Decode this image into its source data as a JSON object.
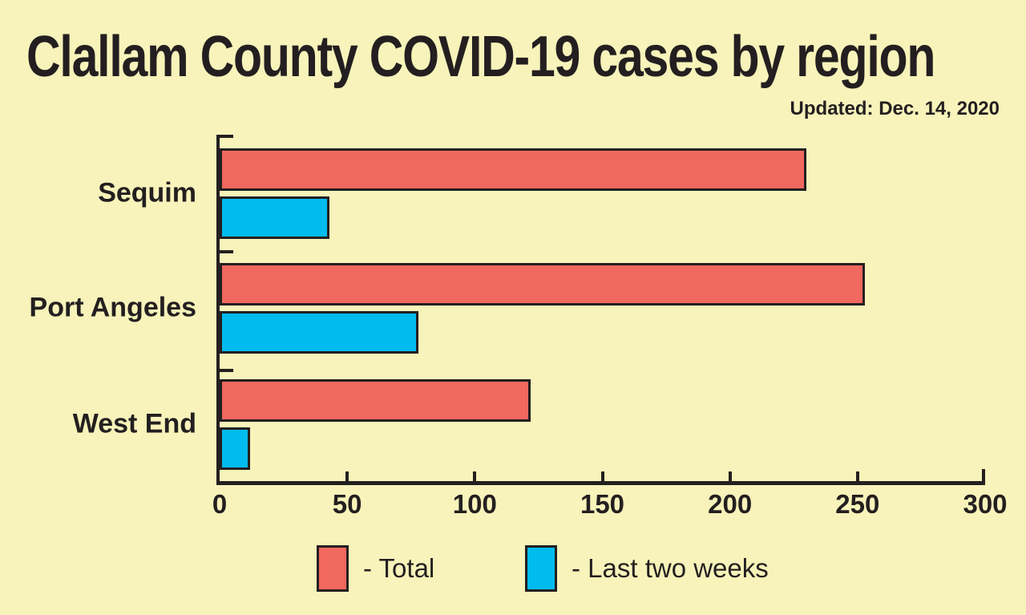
{
  "title": "Clallam County COVID-19 cases by region",
  "updated": "Updated: Dec. 14, 2020",
  "colors": {
    "background": "#F7F3BA",
    "ink": "#231F20",
    "total": "#F1685E",
    "last_two_weeks": "#00BBEE"
  },
  "legend": {
    "items": [
      {
        "label": "- Total",
        "color": "#F1685E"
      },
      {
        "label": "- Last two weeks",
        "color": "#00BBEE"
      }
    ]
  },
  "chart_data": {
    "type": "bar",
    "orientation": "horizontal",
    "title": "Clallam County COVID-19 cases by region",
    "subtitle": "Updated: Dec. 14, 2020",
    "categories": [
      "Sequim",
      "Port Angeles",
      "West End"
    ],
    "series": [
      {
        "name": "Total",
        "color": "#F1685E",
        "values": [
          230,
          253,
          122
        ]
      },
      {
        "name": "Last two weeks",
        "color": "#00BBEE",
        "values": [
          43,
          78,
          12
        ]
      }
    ],
    "xlim": [
      0,
      300
    ],
    "xticks": [
      0,
      50,
      100,
      150,
      200,
      250,
      300
    ],
    "xlabel": "",
    "ylabel": "",
    "grid": false,
    "legend_position": "bottom"
  }
}
